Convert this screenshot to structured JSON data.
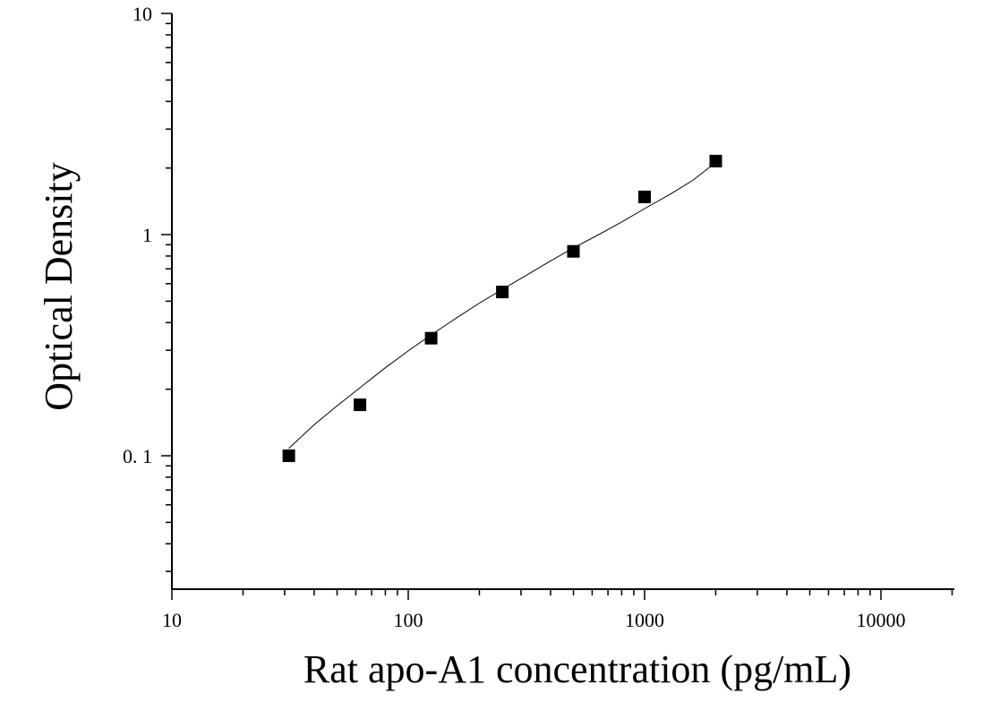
{
  "chart_data": {
    "type": "scatter",
    "title": "",
    "xlabel": "Rat apo-A1 concentration (pg/mL)",
    "ylabel": "Optical Density",
    "x_scale": "log",
    "y_scale": "log",
    "xlim": [
      10,
      20000
    ],
    "ylim": [
      0.026,
      10
    ],
    "x_ticks": [
      {
        "value": 10,
        "label": "10"
      },
      {
        "value": 100,
        "label": "100"
      },
      {
        "value": 1000,
        "label": "1000"
      },
      {
        "value": 10000,
        "label": "10000"
      }
    ],
    "y_ticks": [
      {
        "value": 0.1,
        "label": "0. 1"
      },
      {
        "value": 1,
        "label": "1"
      },
      {
        "value": 10,
        "label": "10"
      }
    ],
    "grid": false,
    "legend": "none",
    "marker_color": "#000000",
    "series": [
      {
        "x": [
          31.25,
          62.5,
          125,
          250,
          500,
          1000,
          2000
        ],
        "y": [
          0.1,
          0.17,
          0.34,
          0.55,
          0.84,
          1.48,
          2.15
        ]
      }
    ],
    "fit_curve": {
      "x": [
        31.25,
        40,
        50,
        62.5,
        80,
        100,
        125,
        160,
        200,
        250,
        320,
        400,
        500,
        640,
        800,
        1000,
        1280,
        1600,
        2000
      ],
      "y": [
        0.108,
        0.138,
        0.168,
        0.203,
        0.25,
        0.298,
        0.352,
        0.42,
        0.49,
        0.565,
        0.66,
        0.76,
        0.87,
        1.0,
        1.14,
        1.31,
        1.52,
        1.76,
        2.12
      ]
    }
  }
}
